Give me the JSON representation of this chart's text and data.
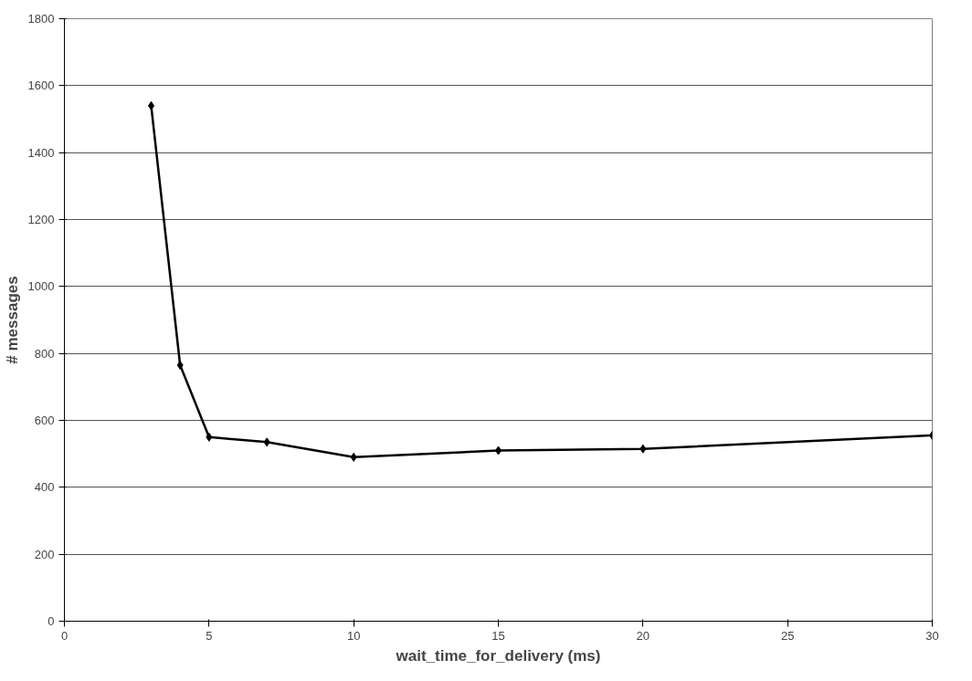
{
  "chart_data": {
    "type": "line",
    "xlabel": "wait_time_for_delivery (ms)",
    "ylabel": "# messages",
    "x": [
      3,
      4,
      5,
      7,
      10,
      15,
      20,
      30
    ],
    "series": [
      {
        "color": "#000000",
        "values": [
          1540,
          765,
          550,
          535,
          490,
          510,
          515,
          555
        ]
      }
    ],
    "xlim": [
      0,
      30
    ],
    "xticks": [
      0,
      5,
      10,
      15,
      20,
      25,
      30
    ],
    "ylim": [
      0,
      1800
    ],
    "yticks": [
      0,
      200,
      400,
      600,
      800,
      1000,
      1200,
      1400,
      1600,
      1800
    ],
    "grid": "y",
    "marker": "diamond",
    "line_style": "solid"
  }
}
